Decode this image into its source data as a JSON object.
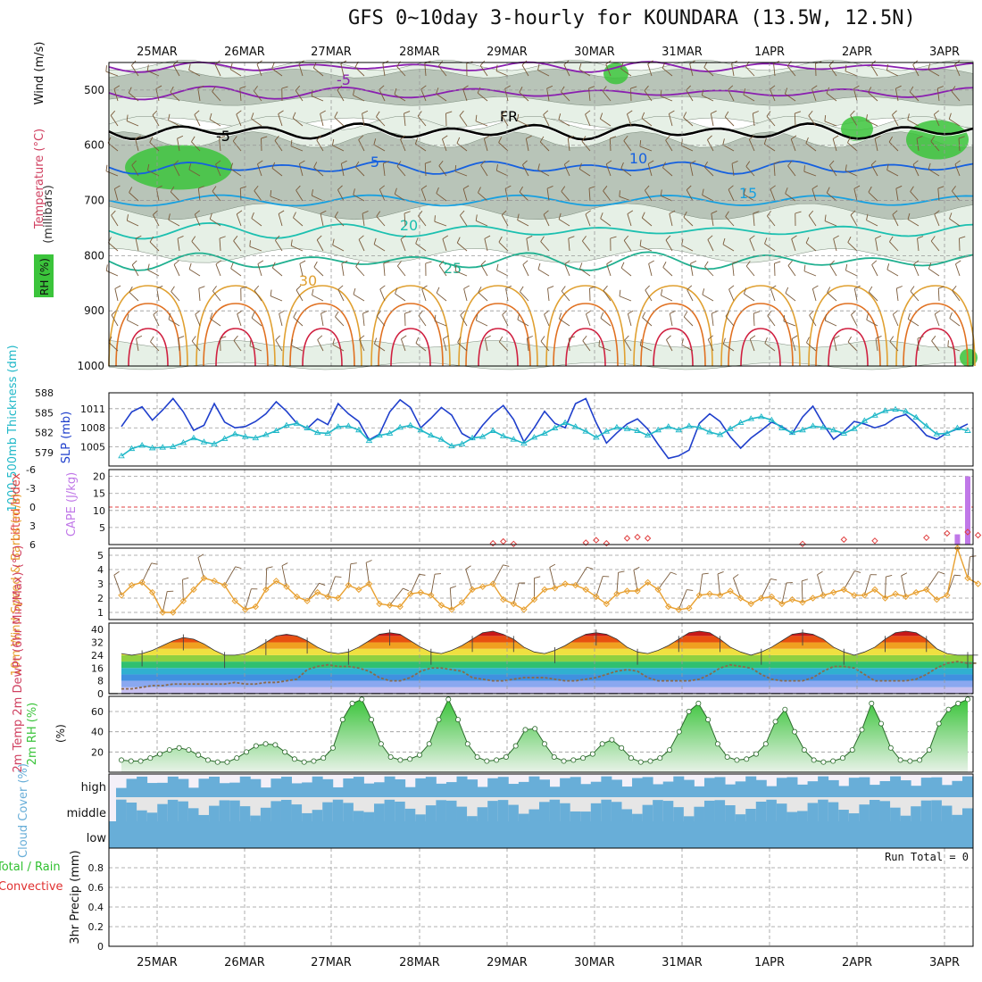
{
  "title": "GFS 0~10day 3-hourly for KOUNDARA (13.5W, 12.5N)",
  "colors": {
    "wind_purple": "#8a1fb0",
    "fr_black": "#000000",
    "blue5": "#1560e0",
    "blue10": "#18a0e0",
    "teal15": "#1cc0b0",
    "teal20": "#20b090",
    "orange25": "#e0a030",
    "orange30": "#e07020",
    "red35": "#d02040",
    "rh_green": "#3bc43b",
    "rh_grey": "#b8c4b8",
    "rh_light": "#e6f0e6",
    "thick_line": "#1f3fcc",
    "slp_line": "#20b8c8",
    "li_red": "#e04040",
    "cape_purple": "#c078e8",
    "wind10_line": "#e8a030",
    "barb_brown": "#7a5a3a",
    "dewpt": "#8a6a4a",
    "cloud_blue": "#68aed8",
    "cloud_grey": "#e6e6e6",
    "cloud_lav": "#f4f0f8"
  },
  "chart_data": [
    {
      "type": "heatmap",
      "panel": "upper-air",
      "title": "Wind (m/s) Temperature (°C) RH (%)",
      "ylabel_wind": "Wind (m/s)",
      "ylabel_temp": "Temperature (°C)",
      "ylabel_rh": "RH (%)",
      "ylabel_units": "(millibars)",
      "yticks": [
        "500",
        "600",
        "700",
        "800",
        "900",
        "1000"
      ],
      "ylim": [
        1000,
        450
      ],
      "x_dates": [
        "25MAR",
        "26MAR",
        "27MAR",
        "28MAR",
        "29MAR",
        "30MAR",
        "31MAR",
        "1APR",
        "2APR",
        "3APR"
      ],
      "contour_labels": [
        {
          "text": "-5",
          "level": "500mb"
        },
        {
          "text": "FR",
          "level": "freezing level ~580mb"
        },
        {
          "text": "-5",
          "level": "630mb"
        },
        {
          "text": "5",
          "level": "630mb"
        },
        {
          "text": "10",
          "level": "700mb"
        },
        {
          "text": "15",
          "level": "760mb"
        },
        {
          "text": "20",
          "level": "800mb"
        },
        {
          "text": "25",
          "level": "830mb"
        },
        {
          "text": "30",
          "level": "RH contour"
        }
      ]
    },
    {
      "type": "line",
      "panel": "thickness-slp",
      "ylabel_left": "1000-500mb Thickness (dm)",
      "ylabel_right": "SLP (mb)",
      "thickness_ticks": [
        "579",
        "582",
        "585",
        "588"
      ],
      "slp_ticks": [
        "1005",
        "1008",
        "1011"
      ],
      "series": [
        {
          "name": "SLP (mb)",
          "axis": "slp",
          "values": [
            1008.2,
            1010.5,
            1011.3,
            1009.2,
            1010.8,
            1012.6,
            1010.5,
            1007.6,
            1008.4,
            1011.8,
            1008.9,
            1008.0,
            1008.2,
            1009.0,
            1010.2,
            1012.1,
            1010.6,
            1008.7,
            1007.9,
            1009.4,
            1008.5,
            1011.8,
            1010.2,
            1009.0,
            1006.1,
            1007.0,
            1010.5,
            1012.4,
            1011.2,
            1008.0,
            1009.5,
            1011.2,
            1010.0,
            1007.1,
            1006.2,
            1008.4,
            1010.2,
            1011.5,
            1009.3,
            1005.8,
            1008.0,
            1010.6,
            1008.7,
            1008.0,
            1011.8,
            1012.6,
            1008.8,
            1005.6,
            1007.2,
            1008.6,
            1009.4,
            1007.8,
            1005.4,
            1003.2,
            1003.6,
            1004.5,
            1008.7,
            1010.2,
            1009.0,
            1006.6,
            1004.8,
            1006.4,
            1007.6,
            1008.9,
            1008.2,
            1007.1,
            1009.7,
            1011.4,
            1008.6,
            1006.2,
            1007.4,
            1009.0,
            1008.6,
            1008.0,
            1008.5,
            1009.6,
            1010.1,
            1008.6,
            1006.8,
            1006.2,
            1007.2,
            1007.8,
            1008.6
          ]
        },
        {
          "name": "1000-500mb Thickness (dm)",
          "axis": "thickness",
          "values": [
            578.5,
            579.6,
            580.1,
            579.7,
            579.8,
            579.9,
            580.5,
            581.2,
            580.6,
            580.3,
            581.1,
            581.8,
            581.4,
            581.2,
            581.7,
            582.3,
            583.1,
            583.4,
            582.7,
            582.0,
            581.9,
            582.9,
            583.0,
            582.4,
            580.8,
            581.6,
            581.9,
            582.8,
            583.1,
            582.4,
            581.6,
            581.0,
            580.0,
            580.3,
            581.2,
            581.4,
            582.3,
            581.5,
            581.0,
            580.4,
            581.3,
            581.9,
            582.7,
            583.5,
            582.9,
            582.2,
            581.3,
            582.2,
            582.8,
            582.6,
            582.3,
            581.6,
            582.4,
            582.9,
            582.4,
            583.0,
            582.8,
            582.1,
            581.7,
            582.6,
            583.5,
            584.1,
            584.4,
            583.9,
            582.7,
            582.0,
            582.4,
            583.0,
            582.8,
            582.4,
            581.9,
            582.6,
            583.8,
            584.6,
            585.3,
            585.5,
            585.2,
            584.3,
            583.0,
            581.8,
            581.9,
            582.7,
            582.3
          ]
        }
      ]
    },
    {
      "type": "bar",
      "panel": "stability",
      "ylabel_li": "Lifted Index",
      "ylabel_cape": "CAPE (J/kg)",
      "li_ticks": [
        "-6",
        "-3",
        "0",
        "3",
        "6"
      ],
      "cape_ticks": [
        "5",
        "10",
        "15",
        "20"
      ],
      "cape_bars": [
        {
          "date_index": 81,
          "value": 3
        },
        {
          "date_index": 82,
          "value": 20
        }
      ],
      "li_points": [
        {
          "x": 36,
          "value": 5.8
        },
        {
          "x": 37,
          "value": 5.5
        },
        {
          "x": 38,
          "value": 5.9
        },
        {
          "x": 45,
          "value": 5.7
        },
        {
          "x": 46,
          "value": 5.3
        },
        {
          "x": 47,
          "value": 5.8
        },
        {
          "x": 49,
          "value": 5.0
        },
        {
          "x": 50,
          "value": 4.8
        },
        {
          "x": 51,
          "value": 5.0
        },
        {
          "x": 66,
          "value": 5.9
        },
        {
          "x": 70,
          "value": 5.2
        },
        {
          "x": 73,
          "value": 5.4
        },
        {
          "x": 78,
          "value": 4.9
        },
        {
          "x": 80,
          "value": 4.2
        },
        {
          "x": 82,
          "value": 4.0
        },
        {
          "x": 83,
          "value": 4.5
        }
      ]
    },
    {
      "type": "line",
      "panel": "wind10m",
      "ylabel": "10m Wind Speed & Barbs (m/s)",
      "yticks": [
        "1",
        "2",
        "3",
        "4",
        "5"
      ],
      "ylim": [
        0.5,
        5.5
      ],
      "values": [
        2.2,
        2.9,
        3.1,
        2.4,
        1.0,
        1.0,
        1.8,
        2.6,
        3.4,
        3.2,
        2.9,
        1.8,
        1.2,
        1.4,
        2.6,
        3.2,
        2.8,
        2.1,
        1.8,
        2.4,
        2.1,
        2.0,
        2.9,
        2.6,
        3.0,
        1.6,
        1.5,
        1.4,
        2.3,
        2.4,
        2.2,
        1.5,
        1.2,
        1.7,
        2.6,
        2.8,
        3.0,
        1.9,
        1.6,
        1.2,
        1.9,
        2.6,
        2.7,
        3.0,
        2.9,
        2.6,
        2.1,
        1.6,
        2.3,
        2.5,
        2.5,
        3.1,
        2.6,
        1.4,
        1.2,
        1.3,
        2.2,
        2.3,
        2.2,
        2.5,
        2.0,
        1.6,
        2.0,
        2.1,
        1.6,
        1.9,
        1.7,
        2.0,
        2.2,
        2.4,
        2.6,
        2.2,
        2.2,
        2.6,
        2.0,
        2.3,
        2.1,
        2.4,
        2.6,
        1.9,
        2.2,
        5.5,
        3.4,
        3.0
      ]
    },
    {
      "type": "area",
      "panel": "temp2m",
      "ylabel": "2m Temp 2m DewPt (6hr Min/Max) (°C)",
      "yticks": [
        "8",
        "16",
        "24",
        "32",
        "40"
      ],
      "ylim": [
        0,
        44
      ],
      "temp": [
        25,
        24,
        25,
        27,
        30,
        33,
        35,
        34,
        31,
        27,
        24,
        24,
        25,
        28,
        32,
        36,
        37,
        36,
        33,
        29,
        26,
        25,
        26,
        29,
        33,
        37,
        38,
        37,
        33,
        29,
        26,
        25,
        27,
        30,
        34,
        38,
        39,
        37,
        34,
        29,
        26,
        25,
        27,
        30,
        34,
        37,
        38,
        37,
        34,
        29,
        26,
        25,
        27,
        30,
        34,
        38,
        39,
        38,
        34,
        29,
        26,
        24,
        26,
        29,
        33,
        37,
        38,
        37,
        34,
        29,
        26,
        24,
        26,
        29,
        34,
        38,
        39,
        38,
        34,
        28,
        25,
        24,
        24,
        24
      ],
      "dewpt": [
        3,
        3,
        4,
        5,
        5,
        6,
        6,
        6,
        6,
        6,
        6,
        7,
        6,
        6,
        7,
        7,
        8,
        9,
        15,
        17,
        18,
        17,
        17,
        16,
        14,
        10,
        8,
        8,
        10,
        14,
        16,
        16,
        15,
        14,
        10,
        9,
        8,
        8,
        9,
        10,
        10,
        10,
        9,
        8,
        8,
        9,
        10,
        12,
        14,
        15,
        14,
        10,
        8,
        8,
        8,
        8,
        9,
        12,
        16,
        18,
        17,
        16,
        12,
        9,
        8,
        8,
        8,
        10,
        14,
        17,
        17,
        16,
        12,
        8,
        8,
        8,
        8,
        9,
        12,
        16,
        19,
        20,
        19,
        19
      ],
      "zero_line": "0"
    },
    {
      "type": "area",
      "panel": "rh2m",
      "ylabel": "2m RH (%)",
      "yticks": [
        "20",
        "40",
        "60"
      ],
      "ylim": [
        0,
        75
      ],
      "values": [
        12,
        11,
        11,
        14,
        18,
        22,
        24,
        22,
        17,
        12,
        10,
        10,
        14,
        20,
        26,
        28,
        27,
        20,
        13,
        10,
        11,
        14,
        24,
        52,
        68,
        72,
        52,
        28,
        15,
        12,
        13,
        17,
        28,
        52,
        72,
        52,
        28,
        15,
        11,
        12,
        15,
        26,
        42,
        43,
        28,
        15,
        11,
        12,
        14,
        18,
        28,
        32,
        24,
        14,
        10,
        11,
        14,
        22,
        40,
        60,
        68,
        52,
        28,
        15,
        12,
        13,
        18,
        28,
        50,
        62,
        40,
        22,
        12,
        10,
        11,
        14,
        22,
        42,
        68,
        48,
        24,
        12,
        11,
        12,
        22,
        48,
        62,
        68,
        72
      ]
    },
    {
      "type": "bar",
      "panel": "cloud",
      "ylabel": "Cloud Cover (%)",
      "row_labels": [
        "high",
        "middle",
        "low"
      ]
    },
    {
      "type": "bar",
      "panel": "precip",
      "ylabel": "3hr Precip (mm)",
      "ylabel_total": "Total / Rain",
      "ylabel_conv": "Convective",
      "yticks": [
        "0",
        "0.2",
        "0.4",
        "0.6",
        "0.8"
      ],
      "ylim": [
        0,
        1.0
      ],
      "run_total_label": "Run Total = 0",
      "values": []
    }
  ]
}
